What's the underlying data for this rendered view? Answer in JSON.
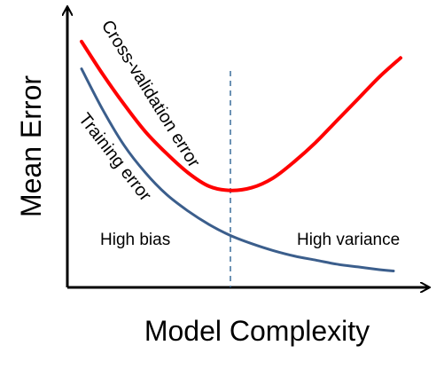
{
  "chart_data": {
    "type": "line",
    "title": "",
    "xlabel": "Model Complexity",
    "ylabel": "Mean Error",
    "x_ticks": "none",
    "y_ticks": "none",
    "grid": false,
    "legend": "none",
    "xlim": [
      0,
      10
    ],
    "ylim": [
      0,
      10
    ],
    "series": [
      {
        "name": "Cross-validation error",
        "color": "#ff0000",
        "x": [
          0.4,
          1.0,
          1.6,
          2.2,
          2.8,
          3.4,
          4.0,
          4.6,
          5.2,
          5.8,
          6.4,
          7.0,
          7.6,
          8.2,
          8.8,
          9.4
        ],
        "y": [
          9.0,
          7.8,
          6.7,
          5.7,
          4.9,
          4.2,
          3.7,
          3.55,
          3.65,
          4.0,
          4.6,
          5.3,
          6.1,
          6.9,
          7.7,
          8.4
        ]
      },
      {
        "name": "Training error",
        "color": "#3b5e8c",
        "x": [
          0.4,
          1.0,
          1.6,
          2.2,
          2.8,
          3.4,
          4.0,
          4.6,
          5.2,
          5.8,
          6.4,
          7.0,
          7.6,
          8.2,
          8.8,
          9.2
        ],
        "y": [
          8.0,
          6.5,
          5.2,
          4.2,
          3.4,
          2.8,
          2.3,
          1.9,
          1.6,
          1.35,
          1.15,
          1.0,
          0.85,
          0.75,
          0.65,
          0.6
        ]
      }
    ],
    "annotations": [
      {
        "text": "High bias"
      },
      {
        "text": "High variance"
      }
    ],
    "reference_line": {
      "type": "vertical",
      "style": "dashed",
      "color": "#3b6e9c",
      "x": 4.6
    }
  }
}
